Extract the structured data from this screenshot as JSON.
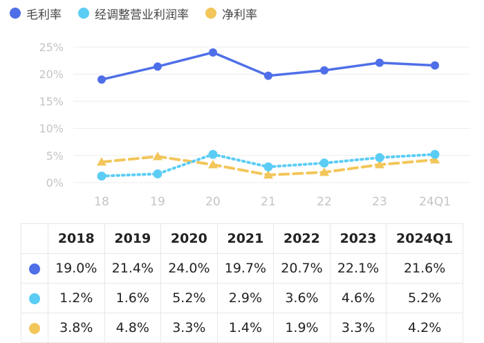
{
  "chart_data": {
    "type": "line",
    "categories": [
      "18",
      "19",
      "20",
      "21",
      "22",
      "23",
      "24Q1"
    ],
    "ylim": [
      0,
      25
    ],
    "y_ticks": [
      "0%",
      "5%",
      "10%",
      "15%",
      "20%",
      "25%"
    ],
    "grid": "horizontal",
    "legend_position": "top-left",
    "series": [
      {
        "name": "毛利率",
        "values": [
          19.0,
          21.4,
          24.0,
          19.7,
          20.7,
          22.1,
          21.6
        ],
        "color": "#4f6fe8",
        "style": "solid",
        "marker": "circle"
      },
      {
        "name": "经调整营业利润率",
        "values": [
          1.2,
          1.6,
          5.2,
          2.9,
          3.6,
          4.6,
          5.2
        ],
        "color": "#5bcdf5",
        "style": "dotted",
        "marker": "circle"
      },
      {
        "name": "净利率",
        "values": [
          3.8,
          4.8,
          3.3,
          1.4,
          1.9,
          3.3,
          4.2
        ],
        "color": "#f2c65a",
        "style": "dashed",
        "marker": "triangle"
      }
    ]
  },
  "table": {
    "headers": [
      "2018",
      "2019",
      "2020",
      "2021",
      "2022",
      "2023",
      "2024Q1"
    ],
    "rows": [
      [
        "19.0%",
        "21.4%",
        "24.0%",
        "19.7%",
        "20.7%",
        "22.1%",
        "21.6%"
      ],
      [
        "1.2%",
        "1.6%",
        "5.2%",
        "2.9%",
        "3.6%",
        "4.6%",
        "5.2%"
      ],
      [
        "3.8%",
        "4.8%",
        "3.3%",
        "1.4%",
        "1.9%",
        "3.3%",
        "4.2%"
      ]
    ]
  }
}
